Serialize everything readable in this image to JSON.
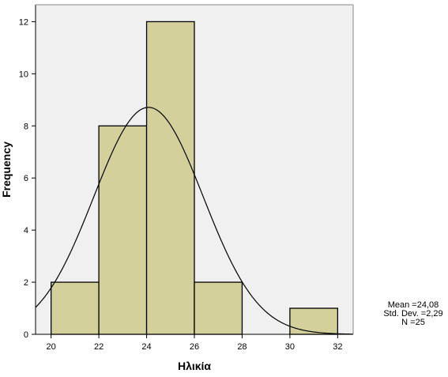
{
  "chart_data": {
    "type": "bar",
    "subtype": "histogram",
    "xlabel": "Ηλικία",
    "ylabel": "Frequency",
    "xlim": [
      19.35,
      32.65
    ],
    "ylim": [
      0,
      12.65
    ],
    "xticks": [
      20,
      22,
      24,
      26,
      28,
      30,
      32
    ],
    "yticks": [
      0,
      2,
      4,
      6,
      8,
      10,
      12
    ],
    "bins": [
      {
        "start": 20,
        "end": 22,
        "count": 2
      },
      {
        "start": 22,
        "end": 24,
        "count": 8
      },
      {
        "start": 24,
        "end": 26,
        "count": 12
      },
      {
        "start": 26,
        "end": 28,
        "count": 2
      },
      {
        "start": 28,
        "end": 30,
        "count": 0
      },
      {
        "start": 30,
        "end": 32,
        "count": 1
      }
    ],
    "normal_curve": {
      "mean": 24.08,
      "sd": 2.29,
      "n": 25,
      "bin_width": 2
    },
    "bar_color": "#d4d09b",
    "plot_background": "#f0f0f0",
    "grid": false,
    "stats_labels": [
      "Mean =24,08",
      "Std. Dev. =2,29",
      "N =25"
    ]
  }
}
